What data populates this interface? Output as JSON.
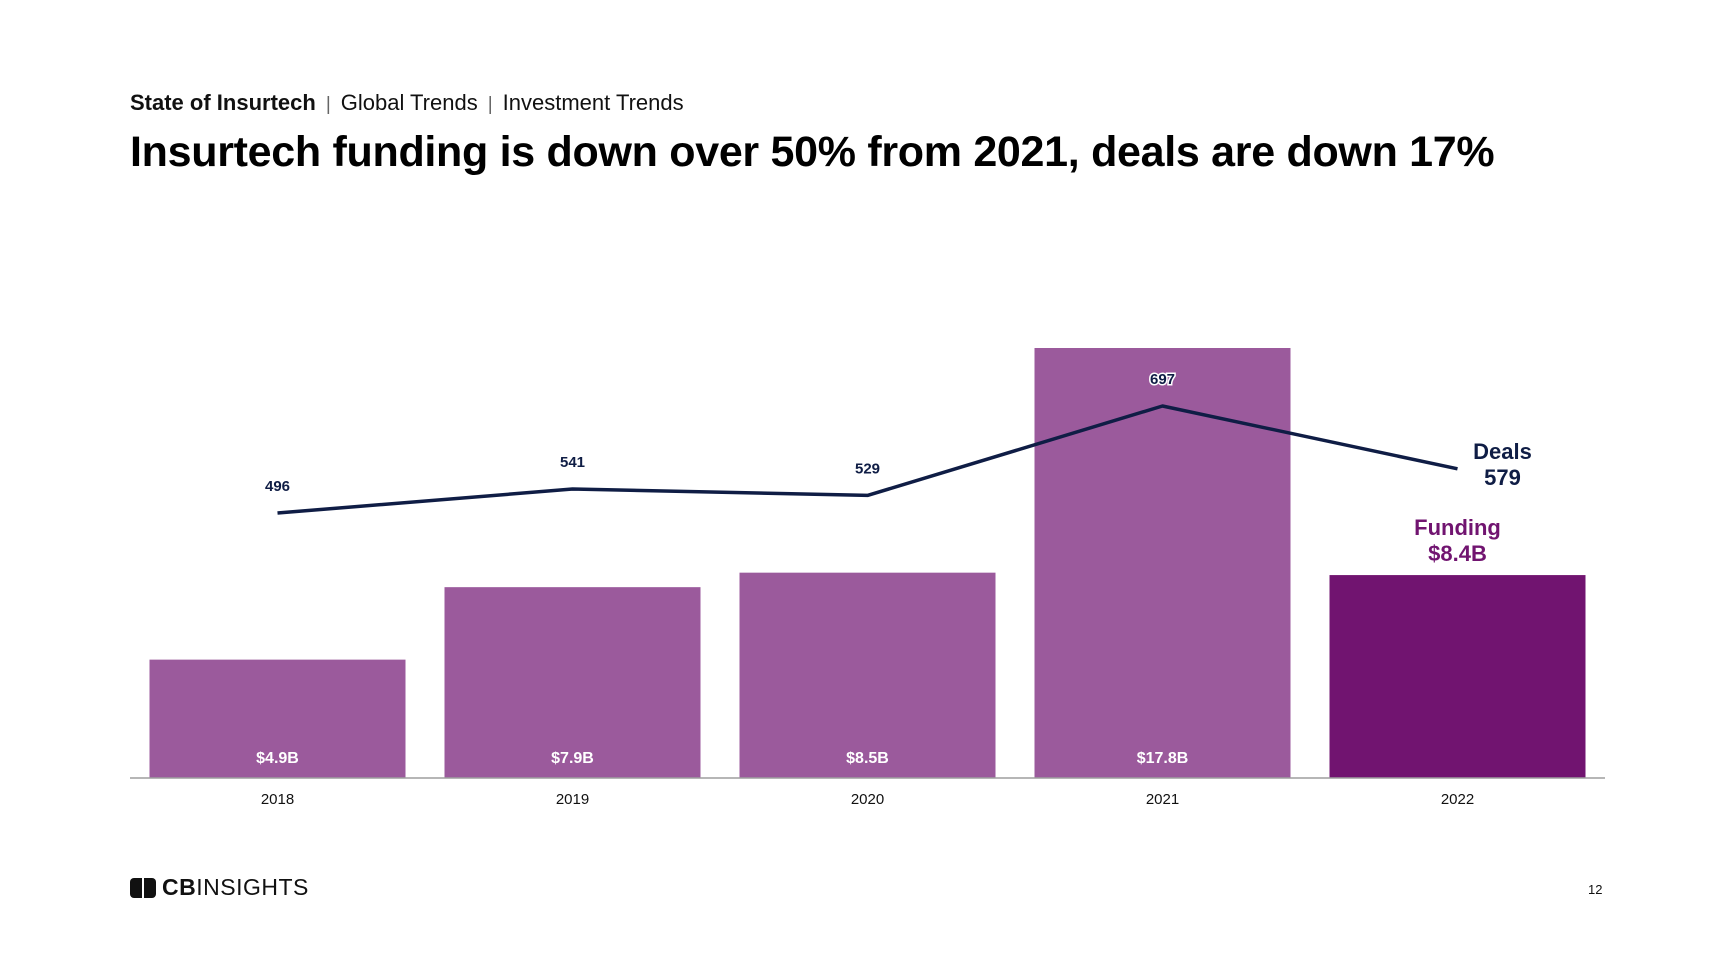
{
  "header": {
    "breadcrumb": [
      "State of Insurtech",
      "Global Trends",
      "Investment Trends"
    ],
    "title": "Insurtech funding is down over 50% from 2021, deals are down 17%"
  },
  "chart_data": {
    "type": "bar",
    "categories": [
      "2018",
      "2019",
      "2020",
      "2021",
      "2022"
    ],
    "series": [
      {
        "name": "Funding",
        "type": "bar",
        "values": [
          4.9,
          7.9,
          8.5,
          17.8,
          8.4
        ],
        "labels": [
          "$4.9B",
          "$7.9B",
          "$8.5B",
          "$17.8B",
          "$8.4B"
        ],
        "colors": [
          "#9b5a9c",
          "#9b5a9c",
          "#9b5a9c",
          "#9b5a9c",
          "#711470"
        ]
      },
      {
        "name": "Deals",
        "type": "line",
        "values": [
          496,
          541,
          529,
          697,
          579
        ],
        "labels": [
          "496",
          "541",
          "529",
          "697",
          "579"
        ],
        "color": "#0f1d45"
      }
    ],
    "callouts": {
      "deals": {
        "name": "Deals",
        "value": "579"
      },
      "funding": {
        "name": "Funding",
        "value": "$8.4B"
      }
    },
    "axis_color": "#9e9e9e"
  },
  "footer": {
    "logo_bold": "CB",
    "logo_rest": "INSIGHTS",
    "page_number": "12"
  }
}
